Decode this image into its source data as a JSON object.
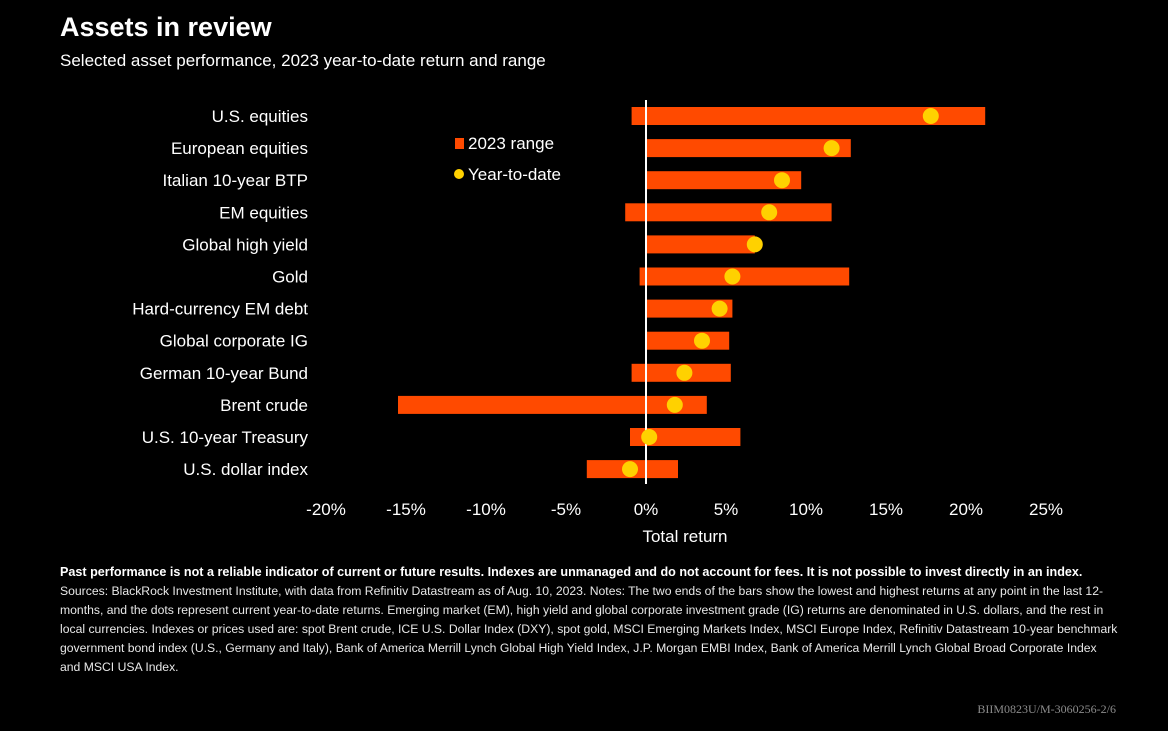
{
  "header": {
    "title": "Assets in review",
    "subtitle": "Selected asset performance, 2023 year-to-date return and range"
  },
  "colors": {
    "background": "#000000",
    "range_bar": "#ff4a00",
    "ytd_dot": "#ffd100",
    "zero_line": "#ffffff",
    "text": "#ffffff"
  },
  "chart_data": {
    "type": "bar",
    "orientation": "horizontal",
    "xlabel": "Total return",
    "xlim": [
      -20,
      25
    ],
    "xticks": [
      -20,
      -15,
      -10,
      -5,
      0,
      5,
      10,
      15,
      20,
      25
    ],
    "xtick_labels": [
      "-20%",
      "-15%",
      "-10%",
      "-5%",
      "0%",
      "5%",
      "10%",
      "15%",
      "20%",
      "25%"
    ],
    "grid": false,
    "legend_position": "top-left of plot area",
    "legend": {
      "range_label": "2023 range",
      "ytd_label": "Year-to-date"
    },
    "categories": [
      "U.S. equities",
      "European equities",
      "Italian 10-year BTP",
      "EM equities",
      "Global high yield",
      "Gold",
      "Hard-currency EM debt",
      "Global corporate IG",
      "German 10-year Bund",
      "Brent crude",
      "U.S. 10-year Treasury",
      "U.S. dollar index"
    ],
    "series": [
      {
        "name": "2023 range",
        "low": [
          -0.9,
          0.0,
          0.0,
          -1.3,
          0.0,
          -0.4,
          0.0,
          0.0,
          -0.9,
          -15.5,
          -1.0,
          -3.7
        ],
        "high": [
          21.2,
          12.8,
          9.7,
          11.6,
          6.8,
          12.7,
          5.4,
          5.2,
          5.3,
          3.8,
          5.9,
          2.0
        ]
      },
      {
        "name": "Year-to-date",
        "values": [
          17.8,
          11.6,
          8.5,
          7.7,
          6.8,
          5.4,
          4.6,
          3.5,
          2.4,
          1.8,
          0.2,
          -1.0
        ]
      }
    ]
  },
  "notes": {
    "bold": "Past performance is not a reliable indicator of current or future results. Indexes are unmanaged and do not account for fees. It is not possible to invest directly in an index.",
    "body": "Sources: BlackRock Investment Institute, with data from Refinitiv Datastream as of Aug. 10, 2023. Notes: The two ends of the bars show the lowest and highest returns at any point in the last 12-months, and the dots represent current year-to-date returns. Emerging market (EM), high yield and global corporate investment grade (IG) returns are denominated in U.S. dollars, and the rest in local currencies. Indexes or prices used are: spot Brent crude, ICE U.S. Dollar Index (DXY), spot gold, MSCI Emerging Markets Index, MSCI Europe Index, Refinitiv Datastream 10-year benchmark government bond index (U.S., Germany and Italy), Bank of America Merrill Lynch Global High Yield Index, J.P. Morgan EMBI Index, Bank of America Merrill Lynch Global Broad Corporate Index and MSCI USA Index."
  },
  "footer": {
    "code": "BIIM0823U/M-3060256-2/6"
  }
}
